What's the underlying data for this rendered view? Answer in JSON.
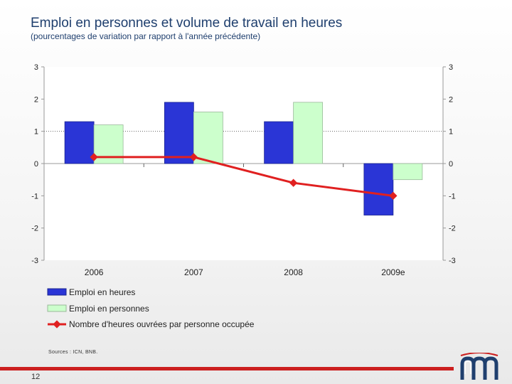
{
  "header": {
    "title": "Emploi en personnes et volume de travail en heures",
    "subtitle": "(pourcentages de variation par rapport à l'année précédente)"
  },
  "footer": {
    "sources": "Sources : ICN, BNB.",
    "page_number": "12"
  },
  "colors": {
    "emploi_heures": "#2a35d6",
    "emploi_personnes": "#ccffcc",
    "heures_par_personne": "#e02020",
    "footer_line": "#cc1f1f",
    "text": "#1f3f6e"
  },
  "chart_data": {
    "type": "bar",
    "categories": [
      "2006",
      "2007",
      "2008",
      "2009e"
    ],
    "ylim": [
      -3,
      3
    ],
    "yticks": [
      3,
      2,
      1,
      0,
      -1,
      -2,
      -3
    ],
    "secondary_ylim": [
      -3,
      3
    ],
    "grid": "dotted line at 1",
    "legend_placement": "bottom-left",
    "series": [
      {
        "name": "Emploi en heures",
        "type": "bar",
        "values": [
          1.3,
          1.9,
          1.3,
          -1.6
        ]
      },
      {
        "name": "Emploi en personnes",
        "type": "bar",
        "values": [
          1.2,
          1.6,
          1.9,
          -0.5
        ]
      },
      {
        "name": "Nombre d'heures ouvrées par personne occupée",
        "type": "line",
        "values": [
          0.2,
          0.2,
          -0.6,
          -1.0
        ]
      }
    ]
  }
}
